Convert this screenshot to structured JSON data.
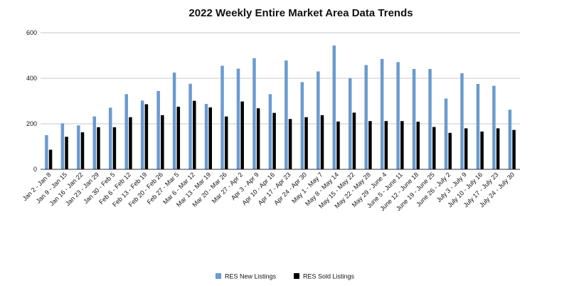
{
  "chart_data": {
    "type": "bar",
    "title": "2022 Weekly Entire Market Area Data Trends",
    "xlabel": "",
    "ylabel": "",
    "ylim": [
      0,
      600
    ],
    "yticks": [
      "0",
      "200",
      "400",
      "600"
    ],
    "grid": true,
    "legend_position": "bottom",
    "categories": [
      "Jan 2 - Jan 8",
      "Jan 9 - Jan 15",
      "Jan 16 - Jan 22",
      "Jan 23 - Jan 29",
      "Jan 30 - Feb 5",
      "Feb 6 - Feb 12",
      "Feb 13 - Feb 19",
      "Feb 20 - Feb 26",
      "Feb 27 - Mar 5",
      "Mar 6 - Mar 12",
      "Mar 13 - Mar 19",
      "Mar 20 - Mar 26",
      "Mar 27 - Apr 2",
      "Apr 3 - Apr 9",
      "Apr 10 - Apr 16",
      "Apr 17 - Apr 23",
      "Apr 24 - Apr 30",
      "May 1 - May 7",
      "May 8 - May 14",
      "May 15 - May 22",
      "May 22 - May 28",
      "May 29 - June 4",
      "June 5 - June 11",
      "June 12 - June 18",
      "June 19 - June 25",
      "June 26 - July 2",
      "July 3 - July 9",
      "July 10 - July 16",
      "July 17 - July 23",
      "July 24 - July 30"
    ],
    "series": [
      {
        "name": "RES New Listings",
        "color": "#6a9bd1",
        "values": [
          150,
          202,
          193,
          232,
          271,
          330,
          302,
          344,
          425,
          376,
          287,
          455,
          442,
          488,
          330,
          478,
          383,
          430,
          544,
          400,
          458,
          485,
          471,
          441,
          441,
          311,
          422,
          375,
          367,
          262
        ]
      },
      {
        "name": "RES Sold Listings",
        "color": "#000000",
        "values": [
          86,
          143,
          163,
          185,
          185,
          229,
          286,
          238,
          275,
          301,
          272,
          232,
          298,
          268,
          248,
          221,
          229,
          238,
          210,
          249,
          212,
          212,
          212,
          209,
          186,
          160,
          180,
          166,
          180,
          173
        ]
      }
    ]
  }
}
